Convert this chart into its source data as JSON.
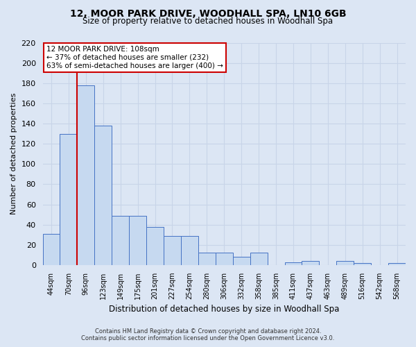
{
  "title": "12, MOOR PARK DRIVE, WOODHALL SPA, LN10 6GB",
  "subtitle": "Size of property relative to detached houses in Woodhall Spa",
  "xlabel": "Distribution of detached houses by size in Woodhall Spa",
  "ylabel": "Number of detached properties",
  "footer_line1": "Contains HM Land Registry data © Crown copyright and database right 2024.",
  "footer_line2": "Contains public sector information licensed under the Open Government Licence v3.0.",
  "bar_labels": [
    "44sqm",
    "70sqm",
    "96sqm",
    "123sqm",
    "149sqm",
    "175sqm",
    "201sqm",
    "227sqm",
    "254sqm",
    "280sqm",
    "306sqm",
    "332sqm",
    "358sqm",
    "385sqm",
    "411sqm",
    "437sqm",
    "463sqm",
    "489sqm",
    "516sqm",
    "542sqm",
    "568sqm"
  ],
  "bar_values": [
    31,
    130,
    178,
    138,
    49,
    49,
    38,
    29,
    29,
    12,
    12,
    8,
    12,
    0,
    3,
    4,
    0,
    4,
    2,
    0,
    2
  ],
  "bar_color": "#c6d9f0",
  "bar_edge_color": "#4472c4",
  "grid_color": "#c8d4e8",
  "background_color": "#dce6f4",
  "vline_color": "#cc0000",
  "vline_x_index": 2,
  "annotation_title": "12 MOOR PARK DRIVE: 108sqm",
  "annotation_line1": "← 37% of detached houses are smaller (232)",
  "annotation_line2": "63% of semi-detached houses are larger (400) →",
  "annotation_box_color": "#ffffff",
  "annotation_box_edge": "#cc0000",
  "ylim": [
    0,
    220
  ],
  "yticks": [
    0,
    20,
    40,
    60,
    80,
    100,
    120,
    140,
    160,
    180,
    200,
    220
  ]
}
